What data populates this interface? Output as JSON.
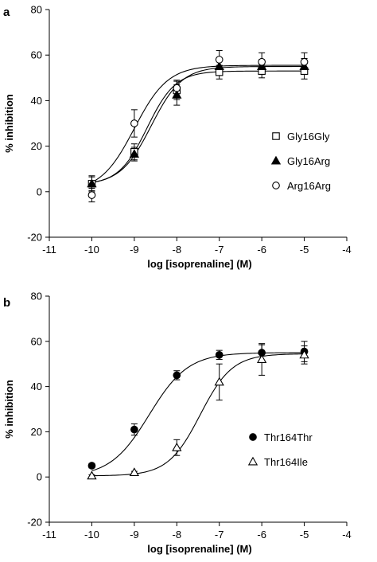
{
  "chart_data": [
    {
      "type": "scatter",
      "panel": "a",
      "xlabel": "log [isoprenaline] (M)",
      "ylabel": "% inhibition",
      "xlim": [
        -11,
        -4
      ],
      "ylim": [
        -20,
        80
      ],
      "xticks": [
        -11,
        -10,
        -9,
        -8,
        -7,
        -6,
        -5,
        -4
      ],
      "yticks": [
        -20,
        0,
        20,
        40,
        60,
        80
      ],
      "grid": false,
      "legend_position": "right",
      "x": [
        -10,
        -9,
        -8,
        -7,
        -6,
        -5
      ],
      "series": [
        {
          "name": "Gly16Gly",
          "marker": "square-open",
          "y": [
            3.5,
            17.5,
            44.5,
            52.5,
            53.0,
            53.0
          ],
          "err": [
            3.5,
            3.5,
            4.0,
            3.0,
            3.0,
            3.5
          ],
          "fit": {
            "bottom": 3.0,
            "top": 53.0,
            "logEC50": -8.7,
            "hill": 1.3
          }
        },
        {
          "name": "Gly16Arg",
          "marker": "triangle-filled",
          "y": [
            3.5,
            16.5,
            42.5,
            55.0,
            55.0,
            55.0
          ],
          "err": [
            3.0,
            3.0,
            4.5,
            3.5,
            3.0,
            3.5
          ],
          "fit": {
            "bottom": 3.0,
            "top": 55.0,
            "logEC50": -8.6,
            "hill": 1.2
          }
        },
        {
          "name": "Arg16Arg",
          "marker": "circle-open",
          "y": [
            -1.5,
            30.0,
            45.5,
            58.0,
            57.0,
            57.0
          ],
          "err": [
            3.0,
            6.0,
            3.5,
            4.0,
            4.0,
            4.0
          ],
          "fit": {
            "bottom": 0.0,
            "top": 55.5,
            "logEC50": -9.0,
            "hill": 1.1
          }
        }
      ]
    },
    {
      "type": "scatter",
      "panel": "b",
      "xlabel": "log [isoprenaline] (M)",
      "ylabel": "% inhibition",
      "xlim": [
        -11,
        -4
      ],
      "ylim": [
        -20,
        80
      ],
      "xticks": [
        -11,
        -10,
        -9,
        -8,
        -7,
        -6,
        -5,
        -4
      ],
      "yticks": [
        -20,
        0,
        20,
        40,
        60,
        80
      ],
      "grid": false,
      "legend_position": "bottom-right",
      "x": [
        -10,
        -9,
        -8,
        -7,
        -6,
        -5
      ],
      "series": [
        {
          "name": "Thr164Thr",
          "marker": "circle-filled",
          "y": [
            5.0,
            21.0,
            45.0,
            54.0,
            55.0,
            55.5
          ],
          "err": [
            1.0,
            2.5,
            2.0,
            2.0,
            3.5,
            4.5
          ],
          "fit": {
            "bottom": 0.0,
            "top": 55.0,
            "logEC50": -8.65,
            "hill": 0.95
          }
        },
        {
          "name": "Thr164Ile",
          "marker": "triangle-open",
          "y": [
            0.5,
            2.0,
            13.0,
            42.0,
            52.0,
            54.0
          ],
          "err": [
            0.5,
            0.5,
            3.5,
            8.0,
            7.0,
            4.0
          ],
          "fit": {
            "bottom": 0.5,
            "top": 54.5,
            "logEC50": -7.45,
            "hill": 1.15
          }
        }
      ]
    }
  ]
}
